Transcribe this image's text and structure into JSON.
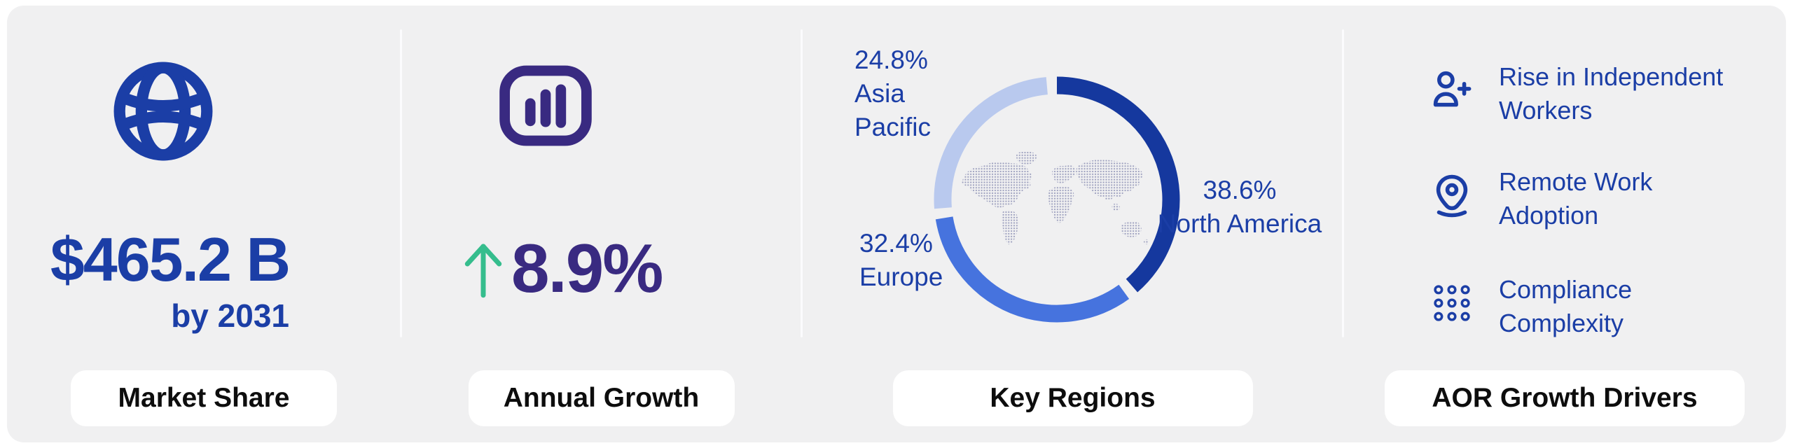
{
  "panels": [
    {
      "id": "market-share",
      "icon": "globe-icon",
      "value": "$465.2 B",
      "subvalue": "by 2031",
      "badge": "Market Share"
    },
    {
      "id": "annual-growth",
      "icon": "bar-chart-icon",
      "arrow_icon": "trend-up-arrow-icon",
      "value": "8.9%",
      "badge": "Annual Growth"
    },
    {
      "id": "key-regions",
      "center_graphic": "dotted-world-map",
      "badge": "Key Regions"
    },
    {
      "id": "aor-growth-drivers",
      "badge": "AOR Growth Drivers",
      "drivers": [
        {
          "icon": "user-plus-icon",
          "label": "Rise in Independent Workers"
        },
        {
          "icon": "location-pin-icon",
          "label": "Remote Work Adoption"
        },
        {
          "icon": "dots-grid-icon",
          "label": "Compliance Complexity"
        }
      ]
    }
  ],
  "chart_data": {
    "type": "pie",
    "variant": "donut",
    "title": "Key Regions",
    "slices": [
      {
        "label": "North America",
        "value": 38.6,
        "pct_label": "38.6%",
        "color": "#15389e"
      },
      {
        "label": "Europe",
        "value": 32.4,
        "pct_label": "32.4%",
        "color": "#4673de"
      },
      {
        "label": "Asia Pacific",
        "value": 24.8,
        "pct_label": "24.8%",
        "color": "#b9c9ee"
      }
    ],
    "start_angle_deg": 0,
    "gap_deg": 5,
    "legend_position": "around-donut",
    "center_graphic": "dotted-world-map"
  },
  "colors": {
    "card_background": "#f0f0f1",
    "primary_blue": "#1b3ea6",
    "purple": "#392a81",
    "green": "#35bd8d",
    "map_dots": "#9c9fbe",
    "pill_background": "#ffffff",
    "pill_text": "#0d0d0d"
  }
}
